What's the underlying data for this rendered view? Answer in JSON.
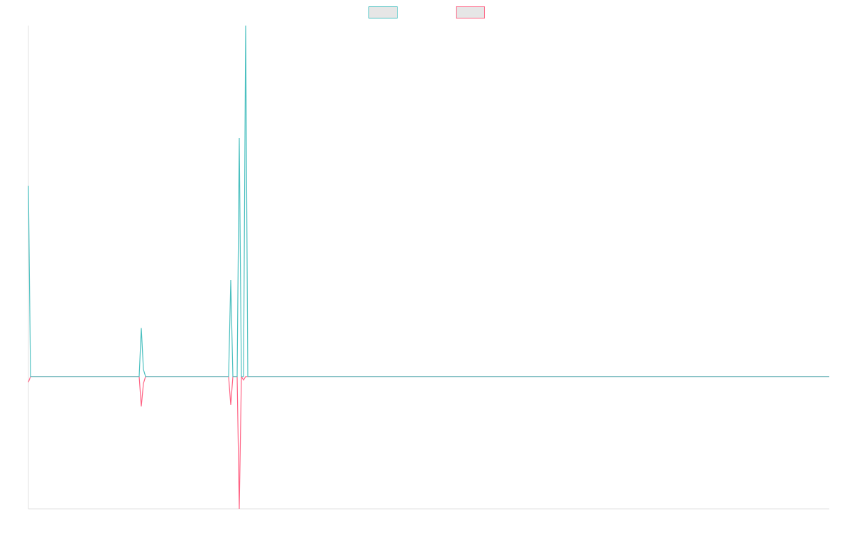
{
  "chart_data": {
    "type": "line",
    "x": [
      0,
      1,
      52,
      53,
      54,
      55,
      94,
      95,
      96,
      98,
      99,
      100,
      101,
      102,
      103,
      376
    ],
    "xlim": [
      0,
      376
    ],
    "ylim": [
      -37.7,
      100
    ],
    "legend": "top",
    "series": [
      {
        "color": "#4bc0c0",
        "values": [
          54.3,
          0,
          0,
          13.8,
          2,
          0,
          0,
          27.5,
          0,
          0,
          68,
          0,
          0,
          100,
          0,
          0
        ]
      },
      {
        "color": "#ff6384",
        "values": [
          -1.6,
          0,
          0,
          -8.5,
          -2,
          0,
          0,
          -8.1,
          0,
          0,
          -37.7,
          0,
          -1,
          0,
          0,
          0
        ]
      }
    ]
  }
}
